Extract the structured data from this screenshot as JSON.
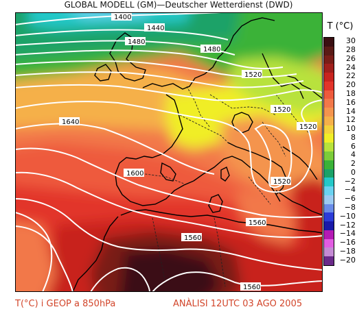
{
  "header": {
    "title": "GLOBAL MODELL (GM)—Deutscher Wetterdienst (DWD)"
  },
  "legend": {
    "title": "T (°C)",
    "entries": [
      {
        "label": "30",
        "color": "#3a0f12"
      },
      {
        "label": "28",
        "color": "#5a1a16"
      },
      {
        "label": "26",
        "color": "#7a1d18"
      },
      {
        "label": "24",
        "color": "#a01f1c"
      },
      {
        "label": "22",
        "color": "#c8241f"
      },
      {
        "label": "20",
        "color": "#e2342a"
      },
      {
        "label": "18",
        "color": "#ee5a3c"
      },
      {
        "label": "16",
        "color": "#f2784a"
      },
      {
        "label": "14",
        "color": "#f4944e"
      },
      {
        "label": "12",
        "color": "#f5b04a"
      },
      {
        "label": "10",
        "color": "#f3d23c"
      },
      {
        "label": "8",
        "color": "#f0ee28"
      },
      {
        "label": "6",
        "color": "#b8e23c"
      },
      {
        "label": "4",
        "color": "#7ccc3a"
      },
      {
        "label": "2",
        "color": "#3ab238"
      },
      {
        "label": "0",
        "color": "#1aa268"
      },
      {
        "label": "−2",
        "color": "#24c8c8"
      },
      {
        "label": "−4",
        "color": "#6ad2f0"
      },
      {
        "label": "−6",
        "color": "#9ccaf2"
      },
      {
        "label": "−8",
        "color": "#6a8ce8"
      },
      {
        "label": "−10",
        "color": "#2c3cd8"
      },
      {
        "label": "−12",
        "color": "#1a1aa8"
      },
      {
        "label": "−14",
        "color": "#b41ab4"
      },
      {
        "label": "−16",
        "color": "#e25ce2"
      },
      {
        "label": "−18",
        "color": "#c48ad4"
      },
      {
        "label": "−20",
        "color": "#6a2a8a"
      }
    ]
  },
  "contours": {
    "labels": [
      "1400",
      "1440",
      "1480",
      "1480",
      "1520",
      "1520",
      "1520",
      "1640",
      "1600",
      "1520",
      "1560",
      "1560",
      "1560"
    ]
  },
  "footer": {
    "left": "T(°C) i GEOP a 850hPa",
    "right": "ANÀLISI 12UTC 03 AGO 2005"
  }
}
